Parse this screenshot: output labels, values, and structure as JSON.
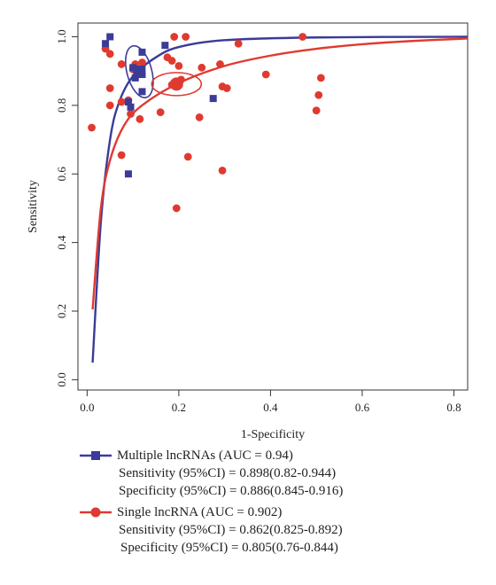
{
  "chart_data": {
    "type": "scatter",
    "xlabel": "1-Specificity",
    "ylabel": "Sensitivity",
    "xlim": [
      -0.02,
      0.83
    ],
    "ylim": [
      -0.03,
      1.04
    ],
    "xticks": [
      "0.0",
      "0.2",
      "0.4",
      "0.6",
      "0.8"
    ],
    "xtick_values": [
      0.0,
      0.2,
      0.4,
      0.6,
      0.8
    ],
    "yticks": [
      "0.0",
      "0.2",
      "0.4",
      "0.6",
      "0.8",
      "1.0"
    ],
    "ytick_values": [
      0.0,
      0.2,
      0.4,
      0.6,
      0.8,
      1.0
    ],
    "grid": false,
    "legend_position": "bottom",
    "series": [
      {
        "name": "Multiple lncRNAs (AUC = 0.94)",
        "color": "#3b3b98",
        "marker": "square",
        "points": [
          [
            0.04,
            0.98
          ],
          [
            0.05,
            1.0
          ],
          [
            0.12,
            0.955
          ],
          [
            0.17,
            0.975
          ],
          [
            0.1,
            0.91
          ],
          [
            0.11,
            0.895
          ],
          [
            0.115,
            0.905
          ],
          [
            0.12,
            0.89
          ],
          [
            0.105,
            0.88
          ],
          [
            0.09,
            0.81
          ],
          [
            0.095,
            0.795
          ],
          [
            0.12,
            0.84
          ],
          [
            0.275,
            0.82
          ],
          [
            0.09,
            0.6
          ]
        ],
        "summary_point": [
          0.114,
          0.898
        ],
        "sroc_curve": [
          [
            0.012,
            0.05
          ],
          [
            0.03,
            0.46
          ],
          [
            0.05,
            0.7
          ],
          [
            0.07,
            0.81
          ],
          [
            0.1,
            0.885
          ],
          [
            0.15,
            0.94
          ],
          [
            0.2,
            0.97
          ],
          [
            0.3,
            0.99
          ],
          [
            0.5,
            0.998
          ],
          [
            0.83,
            1.0
          ]
        ],
        "confidence_region_center": [
          0.114,
          0.898
        ]
      },
      {
        "name": "Single lncRNA (AUC = 0.902)",
        "color": "#e03a30",
        "marker": "circle",
        "points": [
          [
            0.01,
            0.735
          ],
          [
            0.04,
            0.965
          ],
          [
            0.05,
            0.95
          ],
          [
            0.05,
            0.85
          ],
          [
            0.05,
            0.8
          ],
          [
            0.075,
            0.92
          ],
          [
            0.075,
            0.81
          ],
          [
            0.075,
            0.655
          ],
          [
            0.09,
            0.815
          ],
          [
            0.095,
            0.775
          ],
          [
            0.1,
            0.905
          ],
          [
            0.105,
            0.92
          ],
          [
            0.115,
            0.76
          ],
          [
            0.12,
            0.925
          ],
          [
            0.16,
            0.78
          ],
          [
            0.175,
            0.94
          ],
          [
            0.185,
            0.93
          ],
          [
            0.19,
            1.0
          ],
          [
            0.2,
            0.915
          ],
          [
            0.215,
            1.0
          ],
          [
            0.185,
            0.86
          ],
          [
            0.19,
            0.865
          ],
          [
            0.195,
            0.87
          ],
          [
            0.2,
            0.86
          ],
          [
            0.205,
            0.875
          ],
          [
            0.22,
            0.65
          ],
          [
            0.245,
            0.765
          ],
          [
            0.25,
            0.91
          ],
          [
            0.195,
            0.5
          ],
          [
            0.29,
            0.92
          ],
          [
            0.295,
            0.855
          ],
          [
            0.305,
            0.85
          ],
          [
            0.295,
            0.61
          ],
          [
            0.33,
            0.98
          ],
          [
            0.39,
            0.89
          ],
          [
            0.47,
            1.0
          ],
          [
            0.5,
            0.785
          ],
          [
            0.505,
            0.83
          ],
          [
            0.51,
            0.88
          ]
        ],
        "summary_point": [
          0.195,
          0.862
        ],
        "sroc_curve": [
          [
            0.012,
            0.205
          ],
          [
            0.03,
            0.5
          ],
          [
            0.05,
            0.64
          ],
          [
            0.08,
            0.74
          ],
          [
            0.12,
            0.8
          ],
          [
            0.2,
            0.865
          ],
          [
            0.3,
            0.915
          ],
          [
            0.4,
            0.945
          ],
          [
            0.5,
            0.965
          ],
          [
            0.6,
            0.978
          ],
          [
            0.7,
            0.987
          ],
          [
            0.83,
            0.995
          ]
        ],
        "confidence_region_center": [
          0.195,
          0.862
        ]
      }
    ]
  },
  "legend": {
    "multiple": {
      "title": "Multiple lncRNAs (AUC = 0.94)",
      "sensitivity": "Sensitivity (95%CI) = 0.898(0.82-0.944)",
      "specificity": "Specificity (95%CI) = 0.886(0.845-0.916)"
    },
    "single": {
      "title": "Single lncRNA (AUC = 0.902)",
      "sensitivity": "Sensitivity (95%CI) = 0.862(0.825-0.892)",
      "specificity": "Specificity (95%CI) = 0.805(0.76-0.844)"
    }
  }
}
